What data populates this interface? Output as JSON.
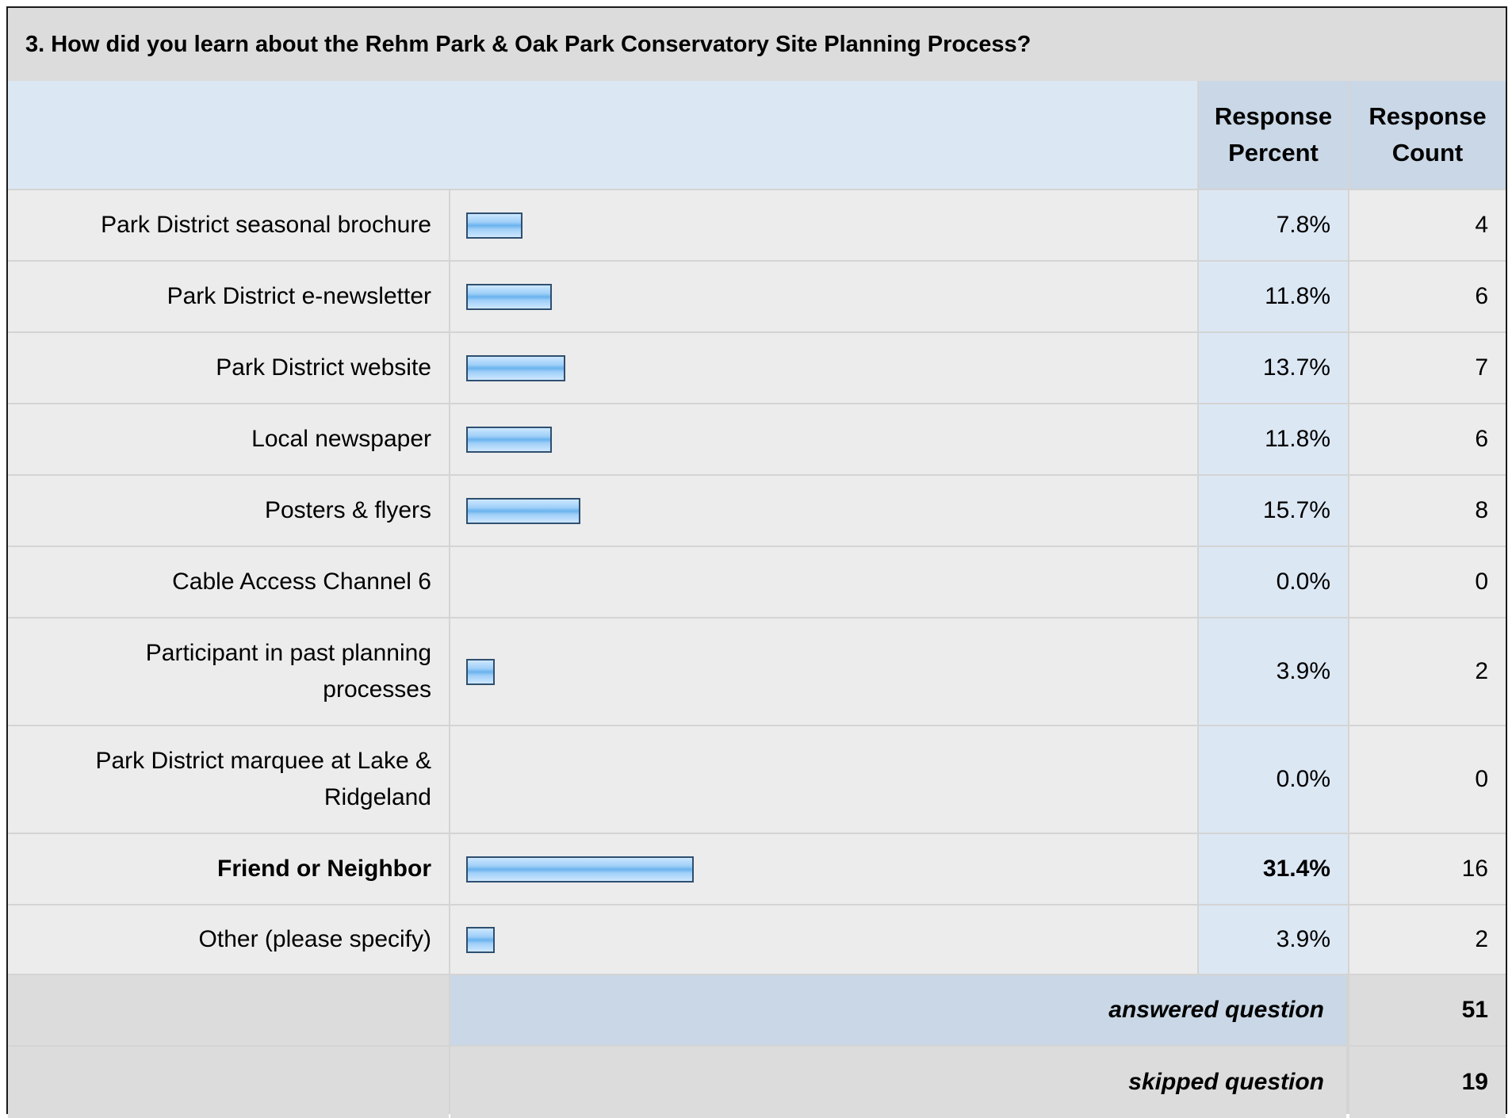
{
  "question_title": "3. How did you learn about the Rehm Park & Oak Park Conservatory Site Planning Process?",
  "headers": {
    "percent": "Response Percent",
    "count": "Response Count"
  },
  "colors": {
    "bar_fill": "#9fcff8",
    "bar_border": "#2f4f6f",
    "header_blue": "#dce7f4",
    "row_gray": "#ececec"
  },
  "chart_data": {
    "type": "bar",
    "orientation": "horizontal",
    "title": "3. How did you learn about the Rehm Park & Oak Park Conservatory Site Planning Process?",
    "categories": [
      "Park District seasonal brochure",
      "Park District e-newsletter",
      "Park District website",
      "Local newspaper",
      "Posters & flyers",
      "Cable Access Channel 6",
      "Participant in past planning processes",
      "Park District marquee at Lake & Ridgeland",
      "Friend or Neighbor",
      "Other (please specify)"
    ],
    "values": [
      7.8,
      11.8,
      13.7,
      11.8,
      15.7,
      0.0,
      3.9,
      0.0,
      31.4,
      3.9
    ],
    "percent_labels": [
      "7.8%",
      "11.8%",
      "13.7%",
      "11.8%",
      "15.7%",
      "0.0%",
      "3.9%",
      "0.0%",
      "31.4%",
      "3.9%"
    ],
    "counts": [
      "4",
      "6",
      "7",
      "6",
      "8",
      "0",
      "2",
      "0",
      "16",
      "2"
    ],
    "highlight": [
      false,
      false,
      false,
      false,
      false,
      false,
      false,
      false,
      true,
      false
    ],
    "xlim": [
      0,
      100
    ]
  },
  "summary": {
    "answered_label": "answered question",
    "answered_value": "51",
    "skipped_label": "skipped question",
    "skipped_value": "19"
  }
}
